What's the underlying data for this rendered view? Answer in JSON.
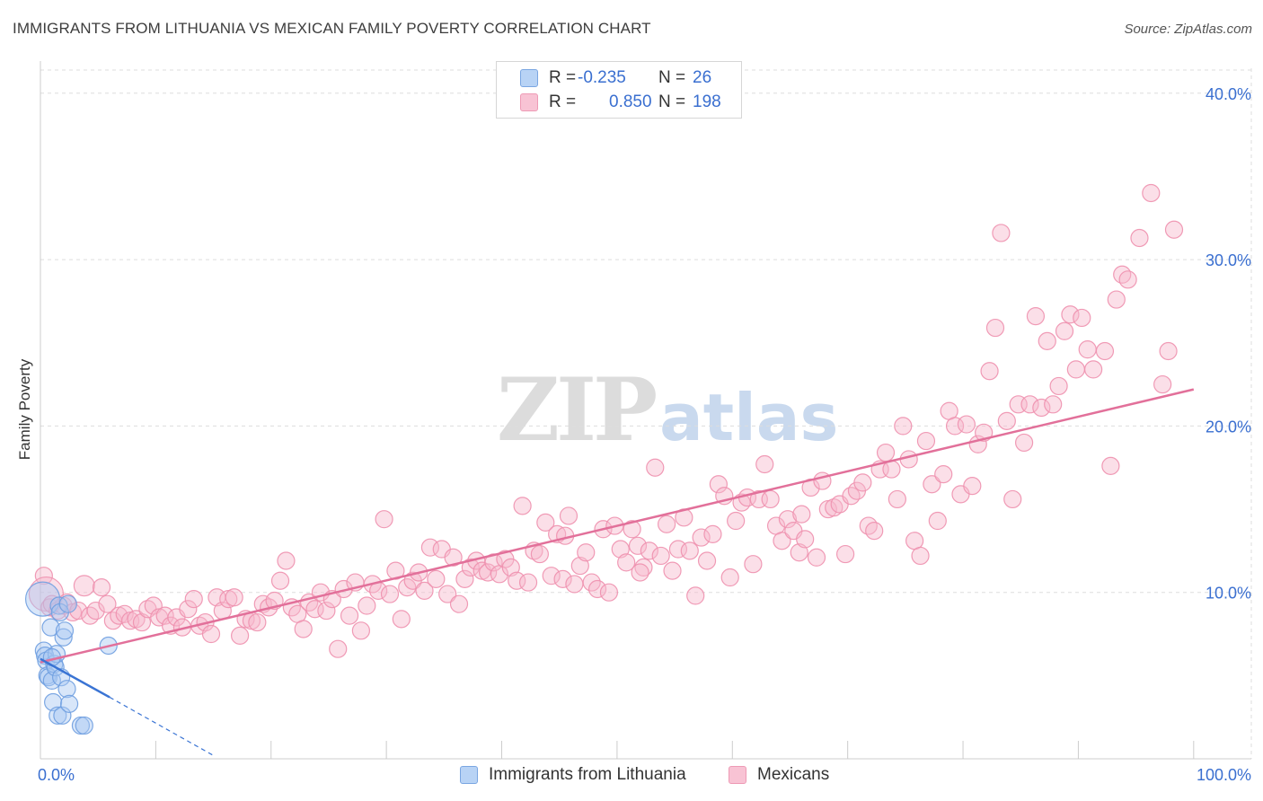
{
  "header": {
    "title": "IMMIGRANTS FROM LITHUANIA VS MEXICAN FAMILY POVERTY CORRELATION CHART",
    "source": "Source: ZipAtlas.com"
  },
  "watermark": {
    "zip": "ZIP",
    "atlas": "atlas"
  },
  "legend": {
    "rows": [
      {
        "r_label": "R =",
        "r_value": "-0.235",
        "n_label": "N =",
        "n_value": "26"
      },
      {
        "r_label": "R =",
        "r_value": "0.850",
        "n_label": "N =",
        "n_value": "198"
      }
    ]
  },
  "bottom_legend": {
    "lithuania": "Immigrants from Lithuania",
    "mexicans": "Mexicans"
  },
  "colors": {
    "lithuania_fill": "#a9c8f2",
    "lithuania_stroke": "#6f9fe0",
    "lithuania_line": "#3a74d4",
    "mexicans_fill": "#f6b8cc",
    "mexicans_stroke": "#ee90ae",
    "mexicans_line": "#e2709a",
    "tick_label": "#3a6fd0",
    "grid": "#dddddd"
  },
  "chart_data": {
    "type": "scatter",
    "title": "IMMIGRANTS FROM LITHUANIA VS MEXICAN FAMILY POVERTY CORRELATION CHART",
    "xlabel": "",
    "ylabel": "Family Poverty",
    "xlim": [
      0,
      105
    ],
    "ylim": [
      0,
      41.5
    ],
    "x_tick_labels": {
      "min": "0.0%",
      "max": "100.0%"
    },
    "y_ticks": [
      {
        "value": 10,
        "label": "10.0%"
      },
      {
        "value": 20,
        "label": "20.0%"
      },
      {
        "value": 30,
        "label": "30.0%"
      },
      {
        "value": 40,
        "label": "40.0%"
      }
    ],
    "series": [
      {
        "name": "Immigrants from Lithuania",
        "r": -0.235,
        "n": 26,
        "trend": {
          "x0": 0,
          "y0": 6.0,
          "x1": 6.0,
          "y1": 3.7,
          "dash_to_x": 15.0,
          "dash_to_y": 0.2
        },
        "points": [
          [
            0.2,
            9.6,
            2
          ],
          [
            0.3,
            6.5,
            1
          ],
          [
            0.4,
            6.2,
            1
          ],
          [
            0.5,
            5.9,
            1
          ],
          [
            0.6,
            5.0,
            1
          ],
          [
            0.7,
            4.9,
            1
          ],
          [
            0.9,
            7.9,
            1
          ],
          [
            1.0,
            4.7,
            1
          ],
          [
            1.1,
            3.4,
            1
          ],
          [
            1.2,
            5.7,
            1
          ],
          [
            1.3,
            5.5,
            1
          ],
          [
            1.4,
            6.3,
            1
          ],
          [
            1.5,
            2.6,
            1
          ],
          [
            1.6,
            9.2,
            1
          ],
          [
            1.7,
            8.8,
            1
          ],
          [
            1.8,
            4.9,
            1
          ],
          [
            1.9,
            2.6,
            1
          ],
          [
            2.0,
            7.3,
            1
          ],
          [
            2.1,
            7.7,
            1
          ],
          [
            2.3,
            4.2,
            1
          ],
          [
            2.4,
            9.3,
            1
          ],
          [
            2.5,
            3.3,
            1
          ],
          [
            3.5,
            2.0,
            1
          ],
          [
            3.8,
            2.0,
            1
          ],
          [
            5.9,
            6.8,
            1
          ],
          [
            1.0,
            6.1,
            1
          ]
        ]
      },
      {
        "name": "Mexicans",
        "r": 0.85,
        "n": 198,
        "trend": {
          "x0": 0,
          "y0": 5.8,
          "x1": 100,
          "y1": 22.2
        },
        "points": [
          [
            0.3,
            11.0,
            1
          ],
          [
            0.5,
            9.9,
            2
          ],
          [
            0.8,
            9.1,
            1
          ],
          [
            1.0,
            9.3,
            1
          ],
          [
            1.5,
            8.9,
            1
          ],
          [
            2.0,
            9.2,
            1
          ],
          [
            2.3,
            9.4,
            1
          ],
          [
            2.8,
            8.8,
            1
          ],
          [
            3.3,
            8.9,
            1
          ],
          [
            3.8,
            10.4,
            1.2
          ],
          [
            4.3,
            8.6,
            1
          ],
          [
            4.8,
            8.9,
            1
          ],
          [
            5.3,
            10.3,
            1
          ],
          [
            5.8,
            9.3,
            1
          ],
          [
            6.3,
            8.3,
            1
          ],
          [
            6.8,
            8.6,
            1
          ],
          [
            7.3,
            8.7,
            1
          ],
          [
            7.8,
            8.3,
            1
          ],
          [
            8.3,
            8.4,
            1
          ],
          [
            8.8,
            8.2,
            1
          ],
          [
            9.3,
            9.0,
            1
          ],
          [
            9.8,
            9.2,
            1
          ],
          [
            10.3,
            8.5,
            1
          ],
          [
            10.8,
            8.6,
            1
          ],
          [
            11.3,
            8.0,
            1
          ],
          [
            11.8,
            8.5,
            1
          ],
          [
            12.3,
            7.9,
            1
          ],
          [
            12.8,
            9.0,
            1
          ],
          [
            13.3,
            9.6,
            1
          ],
          [
            13.8,
            8.0,
            1
          ],
          [
            14.3,
            8.2,
            1
          ],
          [
            14.8,
            7.5,
            1
          ],
          [
            15.3,
            9.7,
            1
          ],
          [
            15.8,
            8.9,
            1
          ],
          [
            16.3,
            9.6,
            1
          ],
          [
            16.8,
            9.7,
            1
          ],
          [
            17.3,
            7.4,
            1
          ],
          [
            17.8,
            8.4,
            1
          ],
          [
            18.3,
            8.3,
            1
          ],
          [
            18.8,
            8.2,
            1
          ],
          [
            19.3,
            9.3,
            1
          ],
          [
            19.8,
            9.1,
            1
          ],
          [
            20.3,
            9.5,
            1
          ],
          [
            20.8,
            10.7,
            1
          ],
          [
            21.3,
            11.9,
            1
          ],
          [
            21.8,
            9.1,
            1
          ],
          [
            22.3,
            8.7,
            1
          ],
          [
            22.8,
            7.8,
            1
          ],
          [
            23.3,
            9.4,
            1
          ],
          [
            23.8,
            9.0,
            1
          ],
          [
            24.3,
            10.0,
            1
          ],
          [
            24.8,
            8.9,
            1
          ],
          [
            25.3,
            9.6,
            1
          ],
          [
            25.8,
            6.6,
            1
          ],
          [
            26.3,
            10.2,
            1
          ],
          [
            26.8,
            8.6,
            1
          ],
          [
            27.3,
            10.6,
            1
          ],
          [
            27.8,
            7.7,
            1
          ],
          [
            28.3,
            9.2,
            1
          ],
          [
            28.8,
            10.5,
            1
          ],
          [
            29.3,
            10.1,
            1
          ],
          [
            29.8,
            14.4,
            1
          ],
          [
            30.3,
            9.9,
            1
          ],
          [
            30.8,
            11.3,
            1
          ],
          [
            31.3,
            8.4,
            1
          ],
          [
            31.8,
            10.3,
            1
          ],
          [
            32.3,
            10.7,
            1
          ],
          [
            32.8,
            11.2,
            1
          ],
          [
            33.3,
            10.1,
            1
          ],
          [
            33.8,
            12.7,
            1
          ],
          [
            34.3,
            10.8,
            1
          ],
          [
            34.8,
            12.6,
            1
          ],
          [
            35.3,
            9.9,
            1
          ],
          [
            35.8,
            12.1,
            1
          ],
          [
            36.3,
            9.3,
            1
          ],
          [
            36.8,
            10.8,
            1
          ],
          [
            37.3,
            11.5,
            1
          ],
          [
            37.8,
            11.9,
            1
          ],
          [
            38.3,
            11.3,
            1
          ],
          [
            38.8,
            11.2,
            1
          ],
          [
            39.3,
            11.8,
            1
          ],
          [
            39.8,
            11.1,
            1
          ],
          [
            40.3,
            12.0,
            1
          ],
          [
            40.8,
            11.5,
            1
          ],
          [
            41.3,
            10.7,
            1
          ],
          [
            41.8,
            15.2,
            1
          ],
          [
            42.3,
            10.6,
            1
          ],
          [
            42.8,
            12.5,
            1
          ],
          [
            43.3,
            12.3,
            1
          ],
          [
            43.8,
            14.2,
            1
          ],
          [
            44.3,
            11.0,
            1
          ],
          [
            44.8,
            13.5,
            1
          ],
          [
            45.3,
            10.8,
            1
          ],
          [
            45.8,
            14.6,
            1
          ],
          [
            46.3,
            10.5,
            1
          ],
          [
            46.8,
            11.6,
            1
          ],
          [
            47.3,
            12.4,
            1
          ],
          [
            47.8,
            10.6,
            1
          ],
          [
            48.3,
            10.2,
            1
          ],
          [
            48.8,
            13.8,
            1
          ],
          [
            49.3,
            10.0,
            1
          ],
          [
            49.8,
            14.0,
            1
          ],
          [
            50.3,
            12.6,
            1
          ],
          [
            50.8,
            11.8,
            1
          ],
          [
            51.3,
            13.8,
            1
          ],
          [
            51.8,
            12.8,
            1
          ],
          [
            52.3,
            11.5,
            1
          ],
          [
            52.8,
            12.5,
            1
          ],
          [
            53.3,
            17.5,
            1
          ],
          [
            53.8,
            12.2,
            1
          ],
          [
            54.3,
            14.1,
            1
          ],
          [
            54.8,
            11.3,
            1
          ],
          [
            55.3,
            12.6,
            1
          ],
          [
            55.8,
            14.5,
            1
          ],
          [
            56.3,
            12.5,
            1
          ],
          [
            56.8,
            9.8,
            1
          ],
          [
            57.3,
            13.3,
            1
          ],
          [
            57.8,
            11.9,
            1
          ],
          [
            58.3,
            13.5,
            1
          ],
          [
            58.8,
            16.5,
            1
          ],
          [
            59.3,
            15.8,
            1
          ],
          [
            59.8,
            10.9,
            1
          ],
          [
            60.3,
            14.3,
            1
          ],
          [
            60.8,
            15.4,
            1
          ],
          [
            61.3,
            15.7,
            1
          ],
          [
            61.8,
            11.7,
            1
          ],
          [
            62.3,
            15.6,
            1
          ],
          [
            62.8,
            17.7,
            1
          ],
          [
            63.3,
            15.6,
            1
          ],
          [
            63.8,
            14.0,
            1
          ],
          [
            64.3,
            13.1,
            1
          ],
          [
            64.8,
            14.4,
            1
          ],
          [
            65.3,
            13.7,
            1
          ],
          [
            65.8,
            12.4,
            1
          ],
          [
            66.3,
            13.2,
            1
          ],
          [
            66.8,
            16.3,
            1
          ],
          [
            67.3,
            12.1,
            1
          ],
          [
            67.8,
            16.7,
            1
          ],
          [
            68.3,
            15.0,
            1
          ],
          [
            68.8,
            15.1,
            1
          ],
          [
            69.3,
            15.3,
            1
          ],
          [
            69.8,
            12.3,
            1
          ],
          [
            70.3,
            15.8,
            1
          ],
          [
            70.8,
            16.1,
            1
          ],
          [
            71.3,
            16.6,
            1
          ],
          [
            71.8,
            14.0,
            1
          ],
          [
            72.3,
            13.7,
            1
          ],
          [
            72.8,
            17.4,
            1
          ],
          [
            73.3,
            18.4,
            1
          ],
          [
            73.8,
            17.4,
            1
          ],
          [
            74.3,
            15.6,
            1
          ],
          [
            74.8,
            20.0,
            1
          ],
          [
            75.3,
            18.0,
            1
          ],
          [
            75.8,
            13.1,
            1
          ],
          [
            76.3,
            12.2,
            1
          ],
          [
            76.8,
            19.1,
            1
          ],
          [
            77.3,
            16.5,
            1
          ],
          [
            77.8,
            14.3,
            1
          ],
          [
            78.3,
            17.1,
            1
          ],
          [
            78.8,
            20.9,
            1
          ],
          [
            79.3,
            20.0,
            1
          ],
          [
            79.8,
            15.9,
            1
          ],
          [
            80.3,
            20.1,
            1
          ],
          [
            80.8,
            16.4,
            1
          ],
          [
            81.3,
            18.9,
            1
          ],
          [
            81.8,
            19.6,
            1
          ],
          [
            82.3,
            23.3,
            1
          ],
          [
            82.8,
            25.9,
            1
          ],
          [
            83.3,
            31.6,
            1
          ],
          [
            83.8,
            20.3,
            1
          ],
          [
            84.3,
            15.6,
            1
          ],
          [
            84.8,
            21.3,
            1
          ],
          [
            85.3,
            19.0,
            1
          ],
          [
            85.8,
            21.3,
            1
          ],
          [
            86.3,
            26.6,
            1
          ],
          [
            86.8,
            21.1,
            1
          ],
          [
            87.3,
            25.1,
            1
          ],
          [
            87.8,
            21.3,
            1
          ],
          [
            88.3,
            22.4,
            1
          ],
          [
            88.8,
            25.7,
            1
          ],
          [
            89.3,
            26.7,
            1
          ],
          [
            89.8,
            23.4,
            1
          ],
          [
            90.3,
            26.5,
            1
          ],
          [
            90.8,
            24.6,
            1
          ],
          [
            91.3,
            23.4,
            1
          ],
          [
            92.3,
            24.5,
            1
          ],
          [
            92.8,
            17.6,
            1
          ],
          [
            93.3,
            27.6,
            1
          ],
          [
            93.8,
            29.1,
            1
          ],
          [
            94.3,
            28.8,
            1
          ],
          [
            95.3,
            31.3,
            1
          ],
          [
            96.3,
            34.0,
            1
          ],
          [
            97.3,
            22.5,
            1
          ],
          [
            97.8,
            24.5,
            1
          ],
          [
            98.3,
            31.8,
            1
          ],
          [
            45.5,
            13.4,
            1
          ],
          [
            52.0,
            11.2,
            1
          ],
          [
            66.0,
            14.7,
            1
          ]
        ]
      }
    ]
  }
}
